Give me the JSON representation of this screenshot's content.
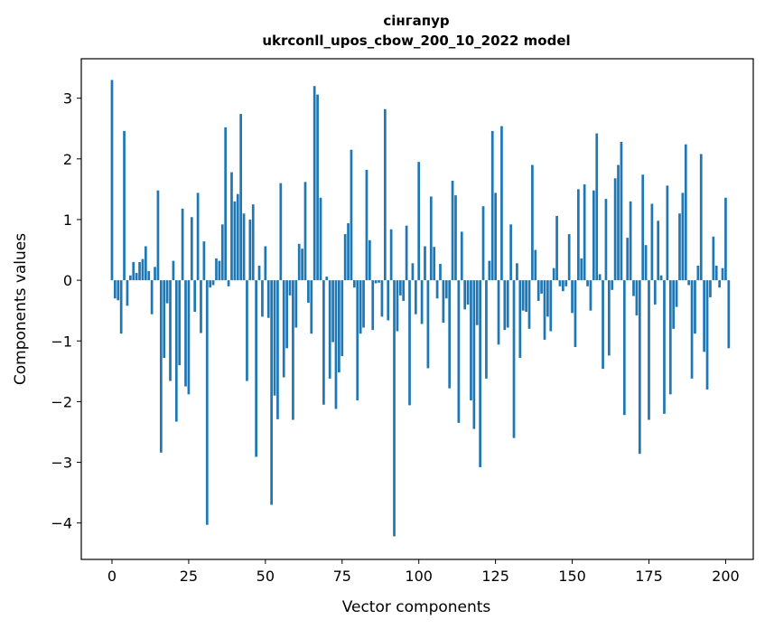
{
  "chart_data": {
    "type": "bar",
    "title": "сінгапур",
    "subtitle": "ukrconll_upos_cbow_200_10_2022 model",
    "xlabel": "Vector components",
    "ylabel": "Components values",
    "xlim": [
      -10,
      209
    ],
    "ylim": [
      -4.6,
      3.65
    ],
    "xticks": [
      0,
      25,
      50,
      75,
      100,
      125,
      150,
      175,
      200
    ],
    "yticks": [
      -4,
      -3,
      -2,
      -1,
      0,
      1,
      2,
      3
    ],
    "color": "#1f77b4",
    "values": [
      3.3,
      -0.3,
      -0.33,
      -0.88,
      2.46,
      -0.42,
      0.08,
      0.3,
      0.12,
      0.3,
      0.35,
      0.56,
      0.15,
      -0.56,
      0.22,
      1.48,
      -2.84,
      -1.28,
      -0.38,
      -1.66,
      0.32,
      -2.33,
      -1.4,
      1.18,
      -1.75,
      -1.88,
      1.04,
      -0.52,
      1.44,
      -0.87,
      0.64,
      -4.03,
      -0.12,
      -0.08,
      0.36,
      0.32,
      0.92,
      2.52,
      -0.1,
      1.78,
      1.3,
      1.42,
      2.74,
      1.1,
      -1.66,
      1.0,
      1.25,
      -2.91,
      0.24,
      -0.6,
      0.56,
      -0.62,
      -3.7,
      -1.9,
      -2.29,
      1.6,
      -1.6,
      -1.12,
      -0.25,
      -2.3,
      -0.78,
      0.6,
      0.52,
      1.62,
      -0.37,
      -0.88,
      3.2,
      3.06,
      1.36,
      -2.05,
      0.06,
      -1.62,
      -1.02,
      -2.12,
      -1.52,
      -1.25,
      0.76,
      0.94,
      2.15,
      -0.12,
      -1.98,
      -0.88,
      -0.78,
      1.82,
      0.66,
      -0.82,
      -0.05,
      -0.04,
      -0.6,
      2.82,
      -0.66,
      0.84,
      -4.22,
      -0.84,
      -0.25,
      -0.34,
      0.9,
      -2.06,
      0.28,
      -0.56,
      1.95,
      -0.72,
      0.56,
      -1.45,
      1.38,
      0.55,
      -0.3,
      0.27,
      -0.7,
      -0.3,
      -1.78,
      1.64,
      1.4,
      -2.35,
      0.8,
      -0.48,
      -0.4,
      -1.98,
      -2.45,
      -0.74,
      -3.08,
      1.22,
      -1.62,
      0.32,
      2.46,
      1.44,
      -1.06,
      2.54,
      -0.82,
      -0.78,
      0.92,
      -2.6,
      0.28,
      -1.28,
      -0.5,
      -0.52,
      -0.8,
      1.9,
      0.5,
      -0.34,
      -0.22,
      -0.98,
      -0.6,
      -0.84,
      0.2,
      1.06,
      -0.1,
      -0.18,
      -0.1,
      0.76,
      -0.54,
      -1.1,
      1.5,
      0.36,
      1.58,
      -0.1,
      -0.5,
      1.48,
      2.42,
      0.1,
      -1.46,
      1.34,
      -1.24,
      -0.16,
      1.68,
      1.9,
      2.28,
      -2.22,
      0.7,
      1.3,
      -0.26,
      -0.58,
      -2.86,
      1.74,
      0.58,
      -2.3,
      1.26,
      -0.4,
      0.98,
      0.08,
      -2.2,
      1.56,
      -1.88,
      -0.8,
      -0.44,
      1.1,
      1.44,
      2.24,
      -0.08,
      -1.62,
      -0.88,
      0.24,
      2.08,
      -1.18,
      -1.8,
      -0.28,
      0.72,
      0.24,
      -0.12,
      0.2,
      1.36,
      -1.12
    ]
  }
}
